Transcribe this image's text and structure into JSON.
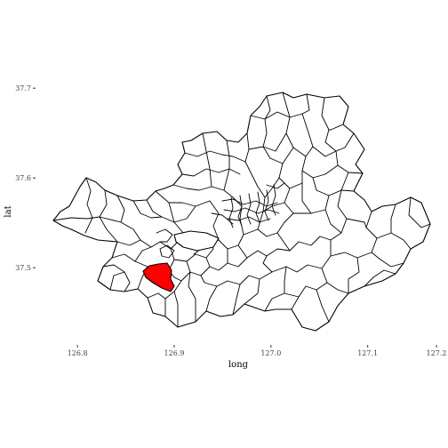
{
  "chart_data": {
    "type": "map",
    "xlabel": "long",
    "ylabel": "lat",
    "x_ticks": [
      "126.8",
      "126.9",
      "127.0",
      "127.1",
      "127.2"
    ],
    "y_ticks": [
      "37.5",
      "37.6",
      "37.7"
    ],
    "x_tick_values": [
      126.8,
      126.9,
      127.0,
      127.1,
      127.2
    ],
    "y_tick_values": [
      37.5,
      37.6,
      37.7
    ],
    "xlim": [
      126.764,
      127.183
    ],
    "ylim": [
      37.42,
      37.717
    ],
    "grid": false,
    "highlighted_region": {
      "fill": "#ff0000",
      "approx_center": {
        "long": 126.883,
        "lat": 37.494
      }
    },
    "colors": {
      "region_fill": "#ffffff",
      "region_border": "#000000",
      "highlight_fill": "#ff0000"
    }
  }
}
